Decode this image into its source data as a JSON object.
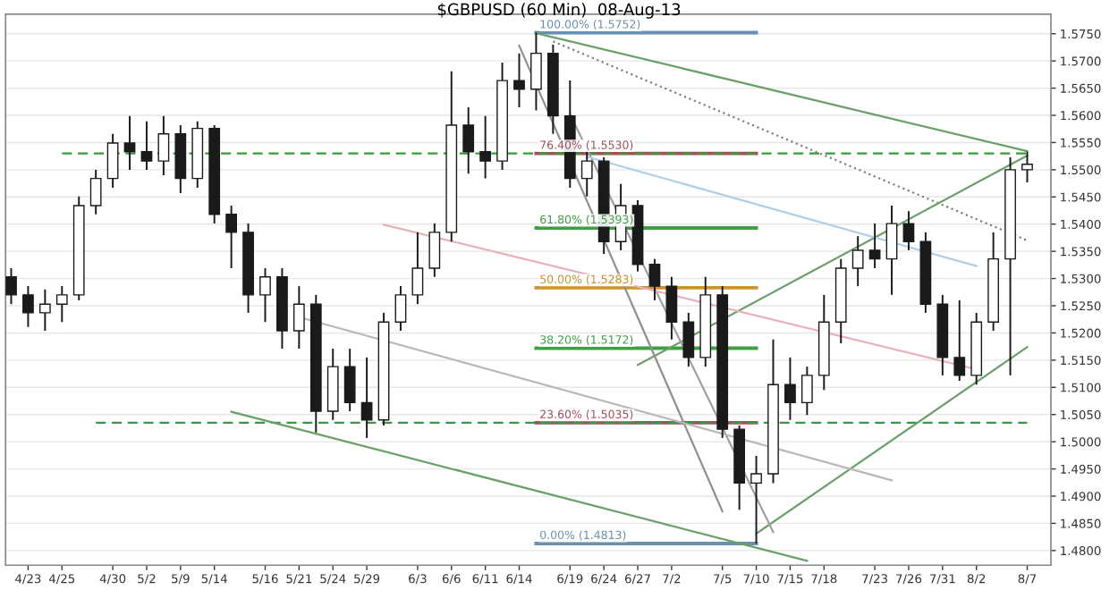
{
  "chart_data": {
    "type": "candlestick",
    "title": "$GBPUSD (60 Min)  08-Aug-13",
    "color": "#1a1a1a",
    "categories": [
      null,
      "4/23",
      null,
      "4/25",
      null,
      null,
      "4/30",
      null,
      "5/2",
      null,
      "5/9",
      null,
      "5/14",
      null,
      null,
      "5/16",
      null,
      "5/21",
      null,
      "5/24",
      null,
      "5/29",
      null,
      null,
      "6/3",
      null,
      "6/6",
      null,
      "6/11",
      null,
      "6/14",
      null,
      null,
      "6/19",
      null,
      "6/24",
      null,
      "6/27",
      null,
      "7/2",
      null,
      null,
      "7/5",
      null,
      "7/10",
      null,
      "7/15",
      null,
      "7/18",
      null,
      null,
      "7/23",
      null,
      "7/26",
      null,
      "7/31",
      null,
      "8/2",
      null,
      null,
      "8/7"
    ],
    "ohlc": [
      [
        1.5303,
        1.5319,
        1.5253,
        1.527
      ],
      [
        1.527,
        1.5286,
        1.5211,
        1.5237
      ],
      [
        1.5237,
        1.528,
        1.5204,
        1.5253
      ],
      [
        1.5253,
        1.5286,
        1.522,
        1.527
      ],
      [
        1.527,
        1.5451,
        1.526,
        1.5434
      ],
      [
        1.5434,
        1.55,
        1.5418,
        1.5484
      ],
      [
        1.5484,
        1.5566,
        1.5467,
        1.5549
      ],
      [
        1.5549,
        1.5599,
        1.55,
        1.5533
      ],
      [
        1.5533,
        1.5589,
        1.55,
        1.5516
      ],
      [
        1.5516,
        1.5599,
        1.549,
        1.5566
      ],
      [
        1.5566,
        1.5582,
        1.5457,
        1.5484
      ],
      [
        1.5484,
        1.5589,
        1.5467,
        1.5576
      ],
      [
        1.5576,
        1.5582,
        1.5401,
        1.5418
      ],
      [
        1.5418,
        1.5434,
        1.5319,
        1.5385
      ],
      [
        1.5385,
        1.5401,
        1.5237,
        1.527
      ],
      [
        1.527,
        1.5319,
        1.522,
        1.5303
      ],
      [
        1.5303,
        1.5319,
        1.5171,
        1.5204
      ],
      [
        1.5204,
        1.5286,
        1.5171,
        1.5253
      ],
      [
        1.5253,
        1.527,
        1.5017,
        1.5056
      ],
      [
        1.5056,
        1.5171,
        1.504,
        1.5138
      ],
      [
        1.5138,
        1.5171,
        1.5056,
        1.5072
      ],
      [
        1.5072,
        1.5155,
        1.5007,
        1.504
      ],
      [
        1.504,
        1.5237,
        1.503,
        1.522
      ],
      [
        1.522,
        1.5286,
        1.5204,
        1.527
      ],
      [
        1.527,
        1.5385,
        1.5253,
        1.5319
      ],
      [
        1.5319,
        1.5401,
        1.5303,
        1.5385
      ],
      [
        1.5385,
        1.5681,
        1.5368,
        1.5582
      ],
      [
        1.5582,
        1.5615,
        1.5493,
        1.5533
      ],
      [
        1.5533,
        1.5599,
        1.5484,
        1.5516
      ],
      [
        1.5516,
        1.5697,
        1.55,
        1.5664
      ],
      [
        1.5664,
        1.5714,
        1.5615,
        1.5648
      ],
      [
        1.5648,
        1.5752,
        1.5609,
        1.5714
      ],
      [
        1.5714,
        1.573,
        1.5566,
        1.5599
      ],
      [
        1.5599,
        1.5664,
        1.5467,
        1.5484
      ],
      [
        1.5484,
        1.5533,
        1.5451,
        1.5516
      ],
      [
        1.5516,
        1.5523,
        1.5345,
        1.5368
      ],
      [
        1.5368,
        1.5474,
        1.5352,
        1.5434
      ],
      [
        1.5434,
        1.5444,
        1.5313,
        1.5326
      ],
      [
        1.5326,
        1.5336,
        1.526,
        1.5286
      ],
      [
        1.5286,
        1.5303,
        1.5188,
        1.522
      ],
      [
        1.522,
        1.5237,
        1.5138,
        1.5155
      ],
      [
        1.5155,
        1.5303,
        1.5138,
        1.527
      ],
      [
        1.527,
        1.5286,
        1.5007,
        1.5023
      ],
      [
        1.5023,
        1.503,
        1.4875,
        1.4924
      ],
      [
        1.4924,
        1.4974,
        1.4813,
        1.4941
      ],
      [
        1.4941,
        1.5188,
        1.4924,
        1.5105
      ],
      [
        1.5105,
        1.5155,
        1.504,
        1.5072
      ],
      [
        1.5072,
        1.5138,
        1.5049,
        1.5122
      ],
      [
        1.5122,
        1.527,
        1.5095,
        1.522
      ],
      [
        1.522,
        1.5336,
        1.5181,
        1.5319
      ],
      [
        1.5319,
        1.5378,
        1.5286,
        1.5352
      ],
      [
        1.5352,
        1.5401,
        1.5319,
        1.5336
      ],
      [
        1.5336,
        1.5434,
        1.527,
        1.5401
      ],
      [
        1.5401,
        1.5424,
        1.5352,
        1.5368
      ],
      [
        1.5368,
        1.5385,
        1.5237,
        1.5253
      ],
      [
        1.5253,
        1.527,
        1.5122,
        1.5155
      ],
      [
        1.5155,
        1.526,
        1.5112,
        1.5122
      ],
      [
        1.5122,
        1.5237,
        1.5105,
        1.522
      ],
      [
        1.522,
        1.5385,
        1.5204,
        1.5336
      ],
      [
        1.5336,
        1.5523,
        1.5122,
        1.55
      ],
      [
        1.55,
        1.5533,
        1.5477,
        1.551
      ]
    ],
    "series": [
      {
        "type": "line",
        "name": "100.00% (1.5752)",
        "color": "#6a8fb0",
        "line_style": "solid",
        "values": [
          null,
          null,
          null,
          null,
          null,
          null,
          null,
          null,
          null,
          null,
          null,
          null,
          null,
          null,
          null,
          null,
          null,
          null,
          null,
          null,
          null,
          null,
          null,
          null,
          null,
          null,
          null,
          null,
          null,
          null,
          null,
          1.5752,
          null,
          null,
          null,
          null,
          null,
          null,
          null,
          null,
          null,
          null,
          null,
          null,
          1.5752,
          null,
          null,
          null,
          null,
          null,
          null,
          null,
          null,
          null,
          null,
          null,
          null,
          null,
          null,
          null,
          null
        ]
      },
      {
        "type": "line",
        "name": "76.40% (1.5530)",
        "color": "#a05060",
        "line_style": "solid",
        "values": [
          null,
          null,
          null,
          null,
          null,
          null,
          null,
          null,
          null,
          null,
          null,
          null,
          null,
          null,
          null,
          null,
          null,
          null,
          null,
          null,
          null,
          null,
          null,
          null,
          null,
          null,
          null,
          null,
          null,
          null,
          null,
          1.553,
          null,
          null,
          null,
          null,
          null,
          null,
          null,
          null,
          null,
          null,
          null,
          null,
          1.553,
          null,
          null,
          null,
          null,
          null,
          null,
          null,
          null,
          null,
          null,
          null,
          null,
          null,
          null,
          null,
          null
        ]
      },
      {
        "type": "line",
        "name": "61.80% (1.5393)",
        "color": "#3f9f43",
        "line_style": "solid",
        "values": [
          null,
          null,
          null,
          null,
          null,
          null,
          null,
          null,
          null,
          null,
          null,
          null,
          null,
          null,
          null,
          null,
          null,
          null,
          null,
          null,
          null,
          null,
          null,
          null,
          null,
          null,
          null,
          null,
          null,
          null,
          null,
          1.5393,
          null,
          null,
          null,
          null,
          null,
          null,
          null,
          null,
          null,
          null,
          null,
          null,
          1.5393,
          null,
          null,
          null,
          null,
          null,
          null,
          null,
          null,
          null,
          null,
          null,
          null,
          null,
          null,
          null,
          null
        ]
      },
      {
        "type": "line",
        "name": "50.00% (1.5283)",
        "color": "#d0902a",
        "line_style": "solid",
        "values": [
          null,
          null,
          null,
          null,
          null,
          null,
          null,
          null,
          null,
          null,
          null,
          null,
          null,
          null,
          null,
          null,
          null,
          null,
          null,
          null,
          null,
          null,
          null,
          null,
          null,
          null,
          null,
          null,
          null,
          null,
          null,
          1.5283,
          null,
          null,
          null,
          null,
          null,
          null,
          null,
          null,
          null,
          null,
          null,
          null,
          1.5283,
          null,
          null,
          null,
          null,
          null,
          null,
          null,
          null,
          null,
          null,
          null,
          null,
          null,
          null,
          null,
          null
        ]
      },
      {
        "type": "line",
        "name": "38.20% (1.5172)",
        "color": "#3f9f43",
        "line_style": "solid",
        "values": [
          null,
          null,
          null,
          null,
          null,
          null,
          null,
          null,
          null,
          null,
          null,
          null,
          null,
          null,
          null,
          null,
          null,
          null,
          null,
          null,
          null,
          null,
          null,
          null,
          null,
          null,
          null,
          null,
          null,
          null,
          null,
          1.5172,
          null,
          null,
          null,
          null,
          null,
          null,
          null,
          null,
          null,
          null,
          null,
          null,
          1.5172,
          null,
          null,
          null,
          null,
          null,
          null,
          null,
          null,
          null,
          null,
          null,
          null,
          null,
          null,
          null,
          null
        ]
      },
      {
        "type": "line",
        "name": "23.60% (1.5035)",
        "color": "#a05060",
        "line_style": "solid",
        "values": [
          null,
          null,
          null,
          null,
          null,
          null,
          null,
          null,
          null,
          null,
          null,
          null,
          null,
          null,
          null,
          null,
          null,
          null,
          null,
          null,
          null,
          null,
          null,
          null,
          null,
          null,
          null,
          null,
          null,
          null,
          null,
          1.5035,
          null,
          null,
          null,
          null,
          null,
          null,
          null,
          null,
          null,
          null,
          null,
          null,
          1.5035,
          null,
          null,
          null,
          null,
          null,
          null,
          null,
          null,
          null,
          null,
          null,
          null,
          null,
          null,
          null,
          null
        ]
      },
      {
        "type": "line",
        "name": "0.00% (1.4813)",
        "color": "#6a8fb0",
        "line_style": "solid",
        "values": [
          null,
          null,
          null,
          null,
          null,
          null,
          null,
          null,
          null,
          null,
          null,
          null,
          null,
          null,
          null,
          null,
          null,
          null,
          null,
          null,
          null,
          null,
          null,
          null,
          null,
          null,
          null,
          null,
          null,
          null,
          null,
          1.4813,
          null,
          null,
          null,
          null,
          null,
          null,
          null,
          null,
          null,
          null,
          null,
          null,
          1.4813,
          null,
          null,
          null,
          null,
          null,
          null,
          null,
          null,
          null,
          null,
          null,
          null,
          null,
          null,
          null,
          null
        ]
      },
      {
        "type": "line",
        "color": "#3a9a3a",
        "line_style": "dashed",
        "values": [
          null,
          null,
          null,
          1.553,
          null,
          null,
          null,
          null,
          null,
          null,
          null,
          null,
          null,
          null,
          null,
          null,
          null,
          null,
          null,
          null,
          null,
          null,
          null,
          null,
          null,
          null,
          null,
          null,
          null,
          null,
          null,
          null,
          null,
          null,
          null,
          null,
          null,
          null,
          null,
          null,
          null,
          null,
          null,
          null,
          null,
          null,
          null,
          null,
          null,
          null,
          null,
          null,
          null,
          null,
          null,
          null,
          null,
          null,
          null,
          null,
          1.553
        ]
      },
      {
        "type": "line",
        "color": "#3a9a3a",
        "line_style": "dashed",
        "values": [
          null,
          null,
          null,
          null,
          null,
          1.5035,
          null,
          null,
          null,
          null,
          null,
          null,
          null,
          null,
          null,
          null,
          null,
          null,
          null,
          null,
          null,
          null,
          null,
          null,
          null,
          null,
          null,
          null,
          null,
          null,
          null,
          null,
          null,
          null,
          null,
          null,
          null,
          null,
          null,
          null,
          null,
          null,
          null,
          null,
          null,
          null,
          null,
          null,
          null,
          null,
          null,
          null,
          null,
          null,
          null,
          null,
          null,
          null,
          null,
          null,
          1.5035
        ]
      },
      {
        "type": "line",
        "color": "#6aa06a",
        "line_style": "solid",
        "values": [
          null,
          null,
          null,
          null,
          null,
          null,
          null,
          null,
          null,
          null,
          null,
          null,
          null,
          null,
          null,
          null,
          null,
          null,
          null,
          null,
          null,
          null,
          null,
          null,
          null,
          null,
          null,
          null,
          null,
          null,
          null,
          1.5751,
          null,
          null,
          null,
          null,
          null,
          null,
          null,
          null,
          null,
          null,
          null,
          null,
          null,
          null,
          null,
          null,
          null,
          null,
          null,
          null,
          null,
          null,
          null,
          null,
          null,
          null,
          null,
          null,
          1.5534
        ]
      },
      {
        "type": "line",
        "color": "#808080",
        "line_style": "dotted",
        "values": [
          null,
          null,
          null,
          null,
          null,
          null,
          null,
          null,
          null,
          null,
          null,
          null,
          null,
          null,
          null,
          null,
          null,
          null,
          null,
          null,
          null,
          null,
          null,
          null,
          null,
          null,
          null,
          null,
          null,
          null,
          null,
          null,
          1.5736,
          null,
          null,
          null,
          null,
          null,
          null,
          null,
          null,
          null,
          null,
          null,
          null,
          null,
          null,
          null,
          null,
          null,
          null,
          null,
          null,
          null,
          null,
          null,
          null,
          null,
          null,
          null,
          1.537
        ]
      },
      {
        "type": "line",
        "color": "#6aa06a",
        "line_style": "solid",
        "values": [
          null,
          null,
          null,
          null,
          null,
          null,
          null,
          null,
          null,
          null,
          null,
          null,
          null,
          1.5055,
          null,
          null,
          null,
          null,
          null,
          null,
          null,
          null,
          null,
          null,
          null,
          null,
          null,
          null,
          null,
          null,
          null,
          null,
          null,
          null,
          null,
          null,
          null,
          null,
          null,
          null,
          null,
          null,
          null,
          null,
          null,
          null,
          null,
          1.4781,
          null,
          null,
          null,
          null,
          null,
          null,
          null,
          null,
          null,
          null,
          null,
          null,
          null
        ]
      },
      {
        "type": "line",
        "color": "#6aa06a",
        "line_style": "solid",
        "values": [
          null,
          null,
          null,
          null,
          null,
          null,
          null,
          null,
          null,
          null,
          null,
          null,
          null,
          null,
          null,
          null,
          null,
          null,
          null,
          null,
          null,
          null,
          null,
          null,
          null,
          null,
          null,
          null,
          null,
          null,
          null,
          null,
          null,
          null,
          null,
          null,
          null,
          1.5141,
          null,
          null,
          null,
          null,
          null,
          null,
          null,
          null,
          null,
          null,
          null,
          null,
          null,
          null,
          null,
          null,
          null,
          null,
          null,
          null,
          null,
          null,
          1.5526
        ]
      },
      {
        "type": "line",
        "color": "#6aa06a",
        "line_style": "solid",
        "values": [
          null,
          null,
          null,
          null,
          null,
          null,
          null,
          null,
          null,
          null,
          null,
          null,
          null,
          null,
          null,
          null,
          null,
          null,
          null,
          null,
          null,
          null,
          null,
          null,
          null,
          null,
          null,
          null,
          null,
          null,
          null,
          null,
          null,
          null,
          null,
          null,
          null,
          null,
          null,
          null,
          null,
          null,
          null,
          null,
          1.4831,
          null,
          null,
          null,
          null,
          null,
          null,
          null,
          null,
          null,
          null,
          null,
          null,
          null,
          null,
          null,
          1.5174
        ]
      },
      {
        "type": "line",
        "color": "#909090",
        "line_style": "solid",
        "values": [
          null,
          null,
          null,
          null,
          null,
          null,
          null,
          null,
          null,
          null,
          null,
          null,
          null,
          null,
          null,
          null,
          null,
          null,
          null,
          null,
          null,
          null,
          null,
          null,
          null,
          null,
          null,
          null,
          null,
          null,
          1.5728,
          null,
          null,
          null,
          null,
          null,
          null,
          null,
          null,
          null,
          null,
          null,
          1.4872,
          null,
          null,
          null,
          null,
          null,
          null,
          null,
          null,
          null,
          null,
          null,
          null,
          null,
          null,
          null,
          null,
          null,
          null
        ]
      },
      {
        "type": "line",
        "color": "#a0a0a0",
        "line_style": "solid",
        "values": [
          null,
          null,
          null,
          null,
          null,
          null,
          null,
          null,
          null,
          null,
          null,
          null,
          null,
          null,
          null,
          null,
          null,
          null,
          null,
          null,
          null,
          null,
          null,
          null,
          null,
          null,
          null,
          null,
          null,
          null,
          null,
          null,
          null,
          1.5602,
          null,
          null,
          null,
          null,
          null,
          null,
          null,
          null,
          null,
          null,
          null,
          1.4834,
          null,
          null,
          null,
          null,
          null,
          null,
          null,
          null,
          null,
          null,
          null,
          null,
          null,
          null,
          null
        ]
      },
      {
        "type": "line",
        "color": "#b0d0e8",
        "line_style": "solid",
        "values": [
          null,
          null,
          null,
          null,
          null,
          null,
          null,
          null,
          null,
          null,
          null,
          null,
          null,
          null,
          null,
          null,
          null,
          null,
          null,
          null,
          null,
          null,
          null,
          null,
          null,
          null,
          null,
          null,
          null,
          null,
          null,
          null,
          null,
          null,
          1.5524,
          null,
          null,
          null,
          null,
          null,
          null,
          null,
          null,
          null,
          null,
          null,
          null,
          null,
          null,
          null,
          null,
          null,
          null,
          null,
          null,
          null,
          null,
          1.5323,
          null,
          null,
          null
        ]
      },
      {
        "type": "line",
        "color": "#e8b0b8",
        "line_style": "solid",
        "values": [
          null,
          null,
          null,
          null,
          null,
          null,
          null,
          null,
          null,
          null,
          null,
          null,
          null,
          null,
          null,
          null,
          null,
          null,
          null,
          null,
          null,
          null,
          1.5399,
          null,
          null,
          null,
          null,
          null,
          null,
          null,
          null,
          null,
          null,
          null,
          null,
          null,
          null,
          null,
          null,
          null,
          null,
          null,
          null,
          null,
          null,
          null,
          null,
          null,
          null,
          null,
          null,
          null,
          null,
          null,
          null,
          null,
          null,
          1.5133,
          null,
          null,
          null
        ]
      },
      {
        "type": "line",
        "color": "#b8b8b8",
        "line_style": "solid",
        "values": [
          null,
          null,
          null,
          null,
          null,
          null,
          null,
          null,
          null,
          null,
          null,
          null,
          null,
          null,
          null,
          null,
          null,
          1.5229,
          null,
          null,
          null,
          null,
          null,
          null,
          null,
          null,
          null,
          null,
          null,
          null,
          null,
          null,
          null,
          null,
          null,
          null,
          null,
          null,
          null,
          null,
          null,
          null,
          null,
          null,
          null,
          null,
          null,
          null,
          null,
          null,
          null,
          null,
          1.4929,
          null,
          null,
          null,
          null,
          null,
          null,
          null,
          null
        ]
      }
    ],
    "ylim": [
      1.4773,
      1.5786
    ],
    "yticks": [
      {
        "value": 1.48,
        "label": "1.4800"
      },
      {
        "value": 1.485,
        "label": "1.4850"
      },
      {
        "value": 1.49,
        "label": "1.4900"
      },
      {
        "value": 1.495,
        "label": "1.4950"
      },
      {
        "value": 1.5,
        "label": "1.5000"
      },
      {
        "value": 1.505,
        "label": "1.5050"
      },
      {
        "value": 1.51,
        "label": "1.5100"
      },
      {
        "value": 1.515,
        "label": "1.5150"
      },
      {
        "value": 1.52,
        "label": "1.5200"
      },
      {
        "value": 1.525,
        "label": "1.5250"
      },
      {
        "value": 1.53,
        "label": "1.5300"
      },
      {
        "value": 1.535,
        "label": "1.5350"
      },
      {
        "value": 1.54,
        "label": "1.5400"
      },
      {
        "value": 1.545,
        "label": "1.5450"
      },
      {
        "value": 1.55,
        "label": "1.5500"
      },
      {
        "value": 1.555,
        "label": "1.5550"
      },
      {
        "value": 1.56,
        "label": "1.5600"
      },
      {
        "value": 1.565,
        "label": "1.5650"
      },
      {
        "value": 1.57,
        "label": "1.5700"
      },
      {
        "value": 1.575,
        "label": "1.5750"
      }
    ],
    "grid": "y"
  }
}
